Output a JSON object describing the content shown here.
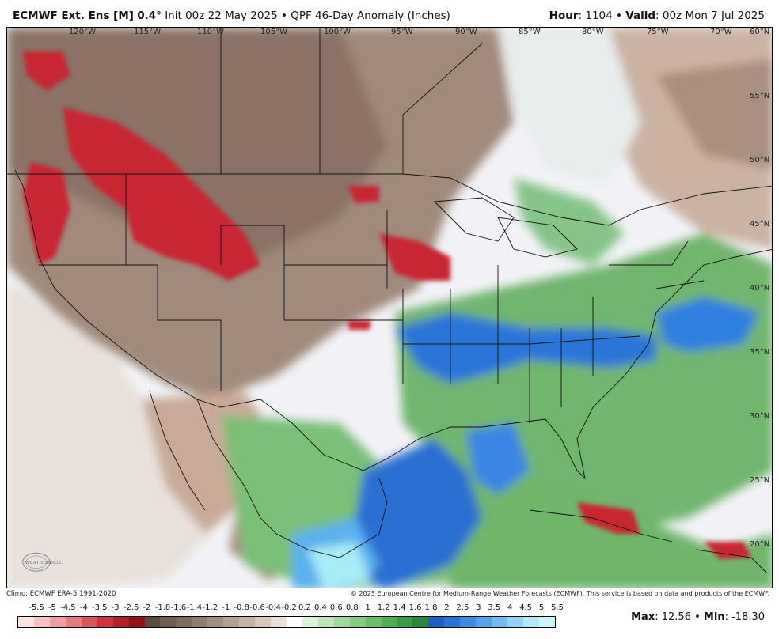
{
  "header": {
    "model": "ECMWF Ext. Ens [M]",
    "resolution": "0.4",
    "resolution_unit": "°",
    "init": "Init 00z 22 May 2025",
    "separator": "•",
    "product": "QPF 46-Day Anomaly (Inches)",
    "hour_label": "Hour",
    "hour_value": ": 1104",
    "valid_label": "Valid",
    "valid_value": ": 00z Mon 7 Jul 2025"
  },
  "map": {
    "lon_labels": [
      "120°W",
      "115°W",
      "110°W",
      "105°W",
      "100°W",
      "95°W",
      "90°W",
      "85°W",
      "80°W",
      "75°W",
      "70°W"
    ],
    "lat_labels": [
      "60°N",
      "55°N",
      "50°N",
      "45°N",
      "40°N",
      "35°N",
      "30°N",
      "25°N",
      "20°N"
    ],
    "colors": {
      "very_dry": "#c0212e",
      "dry": "#8a6e60",
      "slightly_dry": "#d9c3b5",
      "neutral": "#f3f3f7",
      "slightly_wet": "#a9d9a3",
      "wet": "#3c9b4e",
      "very_wet": "#1f6fd8",
      "extreme_wet": "#a6ecf6"
    }
  },
  "logo_text": "WEATHERBELL",
  "credits": {
    "left": "Climo: ECMWF ERA-5 1991-2020",
    "right": "© 2025 European Centre for Medium-Range Weather Forecasts (ECMWF). This service is based on data and products of the ECMWF."
  },
  "legend": {
    "ticks": [
      "-5.5",
      "-5",
      "-4.5",
      "-4",
      "-3.5",
      "-3",
      "-2.5",
      "-2",
      "-1.8",
      "-1.6",
      "-1.4",
      "-1.2",
      "-1",
      "-0.8",
      "-0.6",
      "-0.4",
      "-0.2",
      "0.2",
      "0.4",
      "0.6",
      "0.8",
      "1",
      "1.2",
      "1.4",
      "1.6",
      "1.8",
      "2",
      "2.5",
      "3",
      "3.5",
      "4",
      "4.5",
      "5",
      "5.5"
    ],
    "colors": [
      "#fde4e4",
      "#f8c2c4",
      "#f19da1",
      "#e8797e",
      "#dc5459",
      "#cd353b",
      "#b51e26",
      "#94111a",
      "#5e4a42",
      "#6e5a50",
      "#7f6a5f",
      "#907a6e",
      "#a28c80",
      "#b49f92",
      "#c6b3a6",
      "#d8c8bc",
      "#ebe1d9",
      "#ffffff",
      "#dcf0da",
      "#bfe4bd",
      "#a2d8a0",
      "#86cb84",
      "#6bbd6a",
      "#52ae54",
      "#3c9b47",
      "#2c873b",
      "#1d5fc0",
      "#2674d6",
      "#3a8ae6",
      "#55a2ee",
      "#73bbf2",
      "#92d3f5",
      "#b2e8f8",
      "#cdf4fa"
    ]
  },
  "stats": {
    "max_label": "Max",
    "max_value": ": 12.56",
    "min_label": "Min",
    "min_value": ": -18.30",
    "separator": "•"
  }
}
